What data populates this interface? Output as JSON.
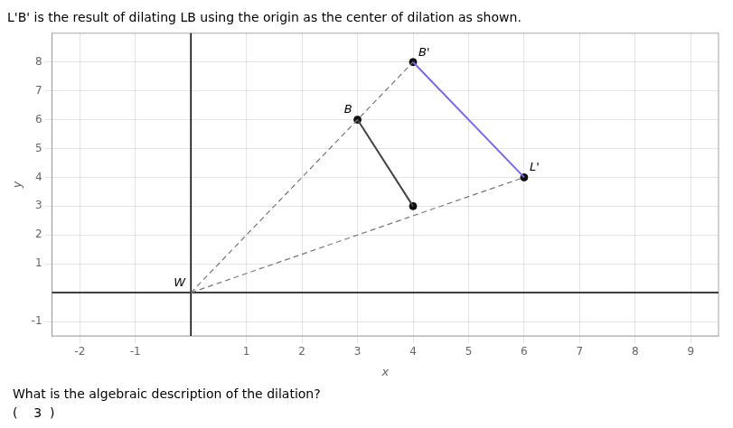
{
  "chart_data": {
    "type": "scatter",
    "title": "L'B' is the result of dilating LB using the origin as the center of dilation as shown.",
    "xlabel": "x",
    "ylabel": "y",
    "xlim": [
      -2.5,
      9.5
    ],
    "ylim": [
      -1.5,
      9.0
    ],
    "xticks": [
      -2,
      -1,
      1,
      2,
      3,
      4,
      5,
      6,
      7,
      8,
      9
    ],
    "yticks": [
      -1,
      1,
      2,
      3,
      4,
      5,
      6,
      7,
      8
    ],
    "grid": true,
    "series": [
      {
        "type": "line",
        "color": "#777777",
        "line_style": "dashed",
        "x": [
          0,
          4
        ],
        "values": [
          0,
          8
        ]
      },
      {
        "type": "line",
        "color": "#777777",
        "line_style": "dashed",
        "x": [
          0,
          6
        ],
        "values": [
          0,
          4
        ]
      },
      {
        "type": "line",
        "color": "#444444",
        "line_style": "solid",
        "x": [
          3,
          4
        ],
        "values": [
          6,
          3
        ]
      },
      {
        "type": "line",
        "color": "#7B68EE",
        "line_style": "solid",
        "x": [
          4,
          6
        ],
        "values": [
          8,
          4
        ]
      },
      {
        "type": "scatter",
        "color": "#111111",
        "marker": "circle",
        "x": [
          3,
          4,
          4,
          6
        ],
        "values": [
          6,
          3,
          8,
          4
        ]
      }
    ],
    "annotations": [
      {
        "text": "W",
        "x": 0,
        "y": 0
      },
      {
        "text": "B",
        "x": 3,
        "y": 6
      },
      {
        "text": "B'",
        "x": 4,
        "y": 8
      },
      {
        "text": "L'",
        "x": 6,
        "y": 4
      },
      {
        "text": "What is the algebraic description of the dilation?"
      },
      {
        "text": "(    3  )"
      }
    ]
  }
}
